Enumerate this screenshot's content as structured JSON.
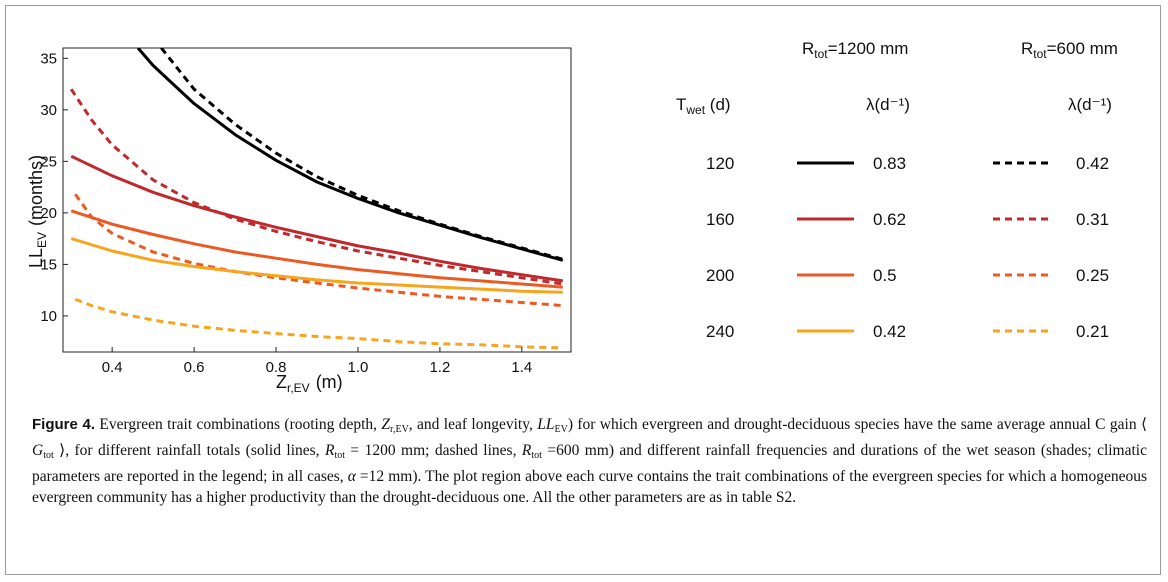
{
  "chart_data": {
    "type": "line",
    "xlabel": "Z",
    "xlabel_sub": "r,EV",
    "xlabel_unit": "(m)",
    "ylabel": "LL",
    "ylabel_sub": "EV",
    "ylabel_unit": "(months)",
    "xlim": [
      0.28,
      1.52
    ],
    "ylim": [
      6.5,
      36
    ],
    "xticks": [
      0.4,
      0.6,
      0.8,
      1.0,
      1.2,
      1.4
    ],
    "xtick_labels": [
      "0.4",
      "0.6",
      "0.8",
      "1.0",
      "1.2",
      "1.4"
    ],
    "yticks": [
      10,
      15,
      20,
      25,
      30,
      35
    ],
    "ytick_labels": [
      "10",
      "15",
      "20",
      "25",
      "30",
      "35"
    ],
    "grid": false,
    "series": [
      {
        "name": "T_wet 120, R_tot 1200 mm",
        "color": "#000000",
        "dash": "solid",
        "x": [
          0.463,
          0.5,
          0.6,
          0.7,
          0.8,
          0.9,
          1.0,
          1.1,
          1.2,
          1.3,
          1.4,
          1.5
        ],
        "y": [
          36.0,
          34.3,
          30.6,
          27.6,
          25.1,
          23.0,
          21.4,
          20.0,
          18.8,
          17.6,
          16.5,
          15.4
        ]
      },
      {
        "name": "T_wet 120, R_tot 600 mm",
        "color": "#000000",
        "dash": "dashed",
        "x": [
          0.52,
          0.6,
          0.7,
          0.8,
          0.9,
          1.0,
          1.1,
          1.2,
          1.3,
          1.4,
          1.5
        ],
        "y": [
          36.0,
          32.0,
          28.6,
          25.8,
          23.5,
          21.7,
          20.2,
          18.9,
          17.7,
          16.6,
          15.5
        ]
      },
      {
        "name": "T_wet 160, R_tot 1200 mm",
        "color": "#c0282b",
        "dash": "solid",
        "x": [
          0.3,
          0.4,
          0.5,
          0.6,
          0.7,
          0.8,
          0.9,
          1.0,
          1.1,
          1.2,
          1.3,
          1.4,
          1.5
        ],
        "y": [
          25.5,
          23.6,
          22.0,
          20.7,
          19.6,
          18.6,
          17.7,
          16.8,
          16.1,
          15.3,
          14.6,
          14.0,
          13.4
        ]
      },
      {
        "name": "T_wet 160, R_tot 600 mm",
        "color": "#c0282b",
        "dash": "dashed",
        "x": [
          0.3,
          0.35,
          0.4,
          0.5,
          0.6,
          0.7,
          0.8,
          0.9,
          1.0,
          1.1,
          1.2,
          1.3,
          1.4,
          1.5
        ],
        "y": [
          32.0,
          29.0,
          26.6,
          23.2,
          21.0,
          19.4,
          18.2,
          17.2,
          16.3,
          15.6,
          14.9,
          14.3,
          13.7,
          13.1
        ]
      },
      {
        "name": "T_wet 200, R_tot 1200 mm",
        "color": "#ec5a24",
        "dash": "solid",
        "x": [
          0.3,
          0.4,
          0.5,
          0.6,
          0.7,
          0.8,
          0.9,
          1.0,
          1.1,
          1.2,
          1.3,
          1.4,
          1.5
        ],
        "y": [
          20.2,
          18.9,
          17.9,
          17.0,
          16.2,
          15.6,
          15.0,
          14.5,
          14.1,
          13.7,
          13.4,
          13.1,
          12.8
        ]
      },
      {
        "name": "T_wet 200, R_tot 600 mm",
        "color": "#ec5a24",
        "dash": "dashed",
        "x": [
          0.31,
          0.35,
          0.4,
          0.5,
          0.6,
          0.7,
          0.8,
          0.9,
          1.0,
          1.1,
          1.2,
          1.3,
          1.4,
          1.5
        ],
        "y": [
          21.8,
          19.6,
          18.0,
          16.2,
          15.1,
          14.3,
          13.7,
          13.2,
          12.7,
          12.3,
          11.9,
          11.6,
          11.3,
          11.0
        ]
      },
      {
        "name": "T_wet 240, R_tot 1200 mm",
        "color": "#f6a51d",
        "dash": "solid",
        "x": [
          0.3,
          0.4,
          0.5,
          0.6,
          0.7,
          0.8,
          0.9,
          1.0,
          1.1,
          1.2,
          1.3,
          1.4,
          1.5
        ],
        "y": [
          17.5,
          16.3,
          15.4,
          14.8,
          14.3,
          13.9,
          13.5,
          13.2,
          13.0,
          12.8,
          12.6,
          12.4,
          12.3
        ]
      },
      {
        "name": "T_wet 240, R_tot 600 mm",
        "color": "#f6a51d",
        "dash": "dashed",
        "x": [
          0.31,
          0.35,
          0.4,
          0.5,
          0.6,
          0.7,
          0.8,
          0.9,
          1.0,
          1.1,
          1.2,
          1.3,
          1.4,
          1.5
        ],
        "y": [
          11.6,
          11.0,
          10.4,
          9.6,
          9.0,
          8.6,
          8.3,
          8.0,
          7.8,
          7.5,
          7.3,
          7.2,
          7.0,
          6.9
        ]
      }
    ]
  },
  "legend": {
    "header_1200": {
      "prefix": "R",
      "sub": "tot",
      "suffix": "=1200 mm"
    },
    "header_600": {
      "prefix": "R",
      "sub": "tot",
      "suffix": "=600 mm"
    },
    "twet_header": {
      "prefix": "T",
      "sub": "wet",
      "suffix": " (d)"
    },
    "lambda_header_1200": "λ(d⁻¹)",
    "lambda_header_600": "λ(d⁻¹)",
    "rows": [
      {
        "twet": "120",
        "lambda_1200": "0.83",
        "lambda_600": "0.42",
        "color": "#000000"
      },
      {
        "twet": "160",
        "lambda_1200": "0.62",
        "lambda_600": "0.31",
        "color": "#c0282b"
      },
      {
        "twet": "200",
        "lambda_1200": "0.5",
        "lambda_600": "0.25",
        "color": "#ec5a24"
      },
      {
        "twet": "240",
        "lambda_1200": "0.42",
        "lambda_600": "0.21",
        "color": "#f6a51d"
      }
    ]
  },
  "caption": {
    "label": "Figure 4.",
    "t1": " Evergreen trait combinations (rooting depth, ",
    "v1": "Z",
    "v1_sub": "r,EV",
    "t2": ", and leaf longevity, ",
    "v2": "LL",
    "v2_sub": "EV",
    "t3": ") for which evergreen and drought-deciduous species have the same average annual C gain ⟨ ",
    "v3": "G",
    "v3_sub": "tot",
    "t4": " ⟩, for different rainfall totals (solid lines, ",
    "v4": "R",
    "v4_sub": "tot",
    "t5": " = 1200 mm; dashed lines, ",
    "v5": "R",
    "v5_sub": "tot",
    "t6": " =600 mm) and different rainfall frequencies and durations of the wet season (shades; climatic parameters are reported in the legend; in all cases, ",
    "v6": "α",
    "t7": " =12 mm). The plot region above each curve contains the trait combinations of the evergreen species for which a homogeneous evergreen community has a higher productivity than the drought-deciduous one. All the other parameters are as in table S2."
  }
}
